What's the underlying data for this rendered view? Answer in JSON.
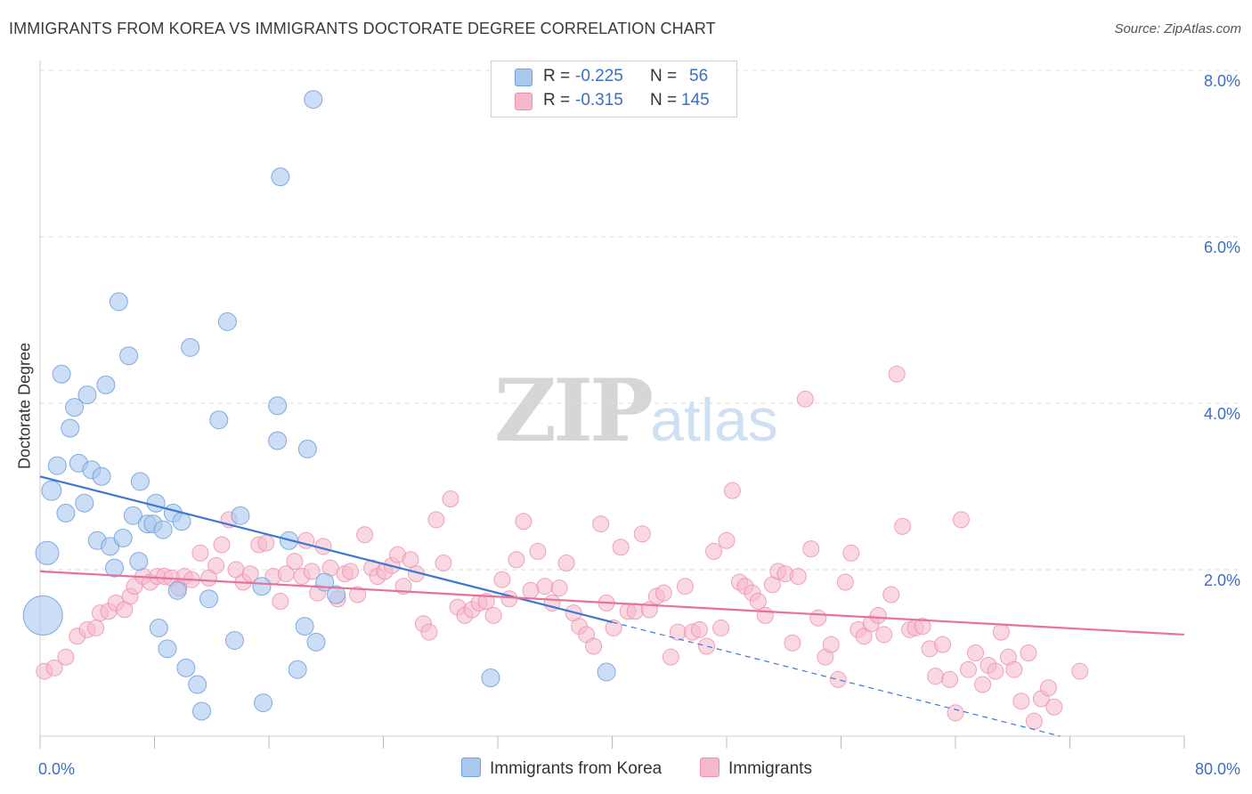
{
  "header": {
    "title": "IMMIGRANTS FROM KOREA VS IMMIGRANTS DOCTORATE DEGREE CORRELATION CHART",
    "source": "Source: ZipAtlas.com"
  },
  "watermark": {
    "zip": "ZIP",
    "atlas": "atlas"
  },
  "legend_top": {
    "rows": [
      {
        "r_label": "R =",
        "r_value": "-0.225",
        "n_label": "N =",
        "n_value": "56"
      },
      {
        "r_label": "R =",
        "r_value": "-0.315",
        "n_label": "N =",
        "n_value": "145"
      }
    ]
  },
  "legend_bottom": {
    "korea": "Immigrants from Korea",
    "immigrants": "Immigrants"
  },
  "colors": {
    "korea_fill": "#a9c8ef",
    "korea_stroke": "#6f9fdb",
    "korea_line": "#3a78d4",
    "imm_fill": "#f6b8cb",
    "imm_stroke": "#ec8fab",
    "imm_line": "#e8719a",
    "tick_text": "#3b6fc4",
    "grid": "#dddddd"
  },
  "chart_data": {
    "type": "scatter",
    "title": "IMMIGRANTS FROM KOREA VS IMMIGRANTS DOCTORATE DEGREE CORRELATION CHART",
    "xlabel": "",
    "ylabel": "Doctorate Degree",
    "xlim": [
      0,
      80
    ],
    "ylim": [
      0,
      8.0
    ],
    "x_tick_labels": [
      "0.0%",
      "80.0%"
    ],
    "y_ticks": [
      2.0,
      4.0,
      6.0,
      8.0
    ],
    "y_tick_labels": [
      "2.0%",
      "4.0%",
      "6.0%",
      "8.0%"
    ],
    "grid": true,
    "legend_position": "top-center",
    "series": [
      {
        "name": "Immigrants from Korea",
        "r": -0.225,
        "n": 56,
        "points": [
          [
            0.2,
            1.45,
            22
          ],
          [
            0.5,
            2.2,
            13
          ],
          [
            0.8,
            2.95,
            11
          ],
          [
            1.2,
            3.25,
            10
          ],
          [
            1.5,
            4.35,
            10
          ],
          [
            1.8,
            2.68,
            10
          ],
          [
            2.1,
            3.7,
            10
          ],
          [
            2.4,
            3.95,
            10
          ],
          [
            2.7,
            3.28,
            10
          ],
          [
            3.1,
            2.8,
            10
          ],
          [
            3.3,
            4.1,
            10
          ],
          [
            3.6,
            3.2,
            10
          ],
          [
            4.0,
            2.35,
            10
          ],
          [
            4.3,
            3.12,
            10
          ],
          [
            4.6,
            4.22,
            10
          ],
          [
            4.9,
            2.28,
            10
          ],
          [
            5.2,
            2.02,
            10
          ],
          [
            5.5,
            5.22,
            10
          ],
          [
            5.8,
            2.38,
            10
          ],
          [
            6.2,
            4.57,
            10
          ],
          [
            6.5,
            2.65,
            10
          ],
          [
            6.9,
            2.1,
            10
          ],
          [
            7.0,
            3.06,
            10
          ],
          [
            7.5,
            2.55,
            10
          ],
          [
            7.9,
            2.55,
            10
          ],
          [
            8.1,
            2.8,
            10
          ],
          [
            8.3,
            1.3,
            10
          ],
          [
            8.6,
            2.48,
            10
          ],
          [
            8.9,
            1.05,
            10
          ],
          [
            9.3,
            2.68,
            10
          ],
          [
            9.6,
            1.75,
            10
          ],
          [
            9.9,
            2.58,
            10
          ],
          [
            10.2,
            0.82,
            10
          ],
          [
            10.5,
            4.67,
            10
          ],
          [
            11.0,
            0.62,
            10
          ],
          [
            11.3,
            0.3,
            10
          ],
          [
            11.8,
            1.65,
            10
          ],
          [
            12.5,
            3.8,
            10
          ],
          [
            13.1,
            4.98,
            10
          ],
          [
            13.6,
            1.15,
            10
          ],
          [
            14.0,
            2.65,
            10
          ],
          [
            15.5,
            1.8,
            10
          ],
          [
            15.6,
            0.4,
            10
          ],
          [
            16.6,
            3.97,
            10
          ],
          [
            16.6,
            3.55,
            10
          ],
          [
            16.8,
            6.72,
            10
          ],
          [
            17.4,
            2.35,
            10
          ],
          [
            18.0,
            0.8,
            10
          ],
          [
            18.5,
            1.32,
            10
          ],
          [
            18.7,
            3.45,
            10
          ],
          [
            19.1,
            7.65,
            10
          ],
          [
            19.3,
            1.13,
            10
          ],
          [
            19.9,
            1.85,
            10
          ],
          [
            20.7,
            1.7,
            10
          ],
          [
            31.5,
            0.7,
            10
          ],
          [
            39.6,
            0.77,
            10
          ]
        ]
      },
      {
        "name": "Immigrants",
        "r": -0.315,
        "n": 145,
        "points": [
          [
            0.3,
            0.78
          ],
          [
            1.0,
            0.82
          ],
          [
            1.8,
            0.95
          ],
          [
            2.6,
            1.2
          ],
          [
            3.3,
            1.28
          ],
          [
            3.9,
            1.3
          ],
          [
            4.2,
            1.48
          ],
          [
            4.8,
            1.5
          ],
          [
            5.3,
            1.6
          ],
          [
            5.9,
            1.52
          ],
          [
            6.3,
            1.68
          ],
          [
            6.6,
            1.8
          ],
          [
            7.2,
            1.92
          ],
          [
            7.7,
            1.85
          ],
          [
            8.2,
            1.92
          ],
          [
            8.7,
            1.92
          ],
          [
            9.2,
            1.9
          ],
          [
            9.7,
            1.78
          ],
          [
            10.1,
            1.92
          ],
          [
            10.6,
            1.88
          ],
          [
            11.2,
            2.2
          ],
          [
            11.8,
            1.9
          ],
          [
            12.3,
            2.05
          ],
          [
            12.7,
            2.3
          ],
          [
            13.2,
            2.6
          ],
          [
            13.7,
            2.0
          ],
          [
            14.2,
            1.85
          ],
          [
            14.7,
            1.95
          ],
          [
            15.3,
            2.3
          ],
          [
            15.8,
            2.32
          ],
          [
            16.3,
            1.92
          ],
          [
            16.8,
            1.62
          ],
          [
            17.2,
            1.95
          ],
          [
            17.8,
            2.1
          ],
          [
            18.3,
            1.92
          ],
          [
            18.6,
            2.35
          ],
          [
            19.0,
            1.98
          ],
          [
            19.4,
            1.72
          ],
          [
            19.8,
            2.28
          ],
          [
            20.3,
            2.02
          ],
          [
            20.8,
            1.65
          ],
          [
            21.3,
            1.95
          ],
          [
            21.7,
            1.98
          ],
          [
            22.2,
            1.7
          ],
          [
            22.7,
            2.42
          ],
          [
            23.2,
            2.02
          ],
          [
            23.6,
            1.92
          ],
          [
            24.1,
            1.98
          ],
          [
            24.6,
            2.05
          ],
          [
            25.0,
            2.18
          ],
          [
            25.4,
            1.8
          ],
          [
            25.9,
            2.12
          ],
          [
            26.3,
            1.95
          ],
          [
            26.8,
            1.35
          ],
          [
            27.2,
            1.25
          ],
          [
            27.7,
            2.6
          ],
          [
            28.2,
            2.08
          ],
          [
            28.7,
            2.85
          ],
          [
            29.2,
            1.55
          ],
          [
            29.7,
            1.45
          ],
          [
            30.2,
            1.52
          ],
          [
            30.7,
            1.6
          ],
          [
            31.2,
            1.62
          ],
          [
            31.7,
            1.45
          ],
          [
            32.3,
            1.88
          ],
          [
            32.8,
            1.65
          ],
          [
            33.3,
            2.12
          ],
          [
            33.8,
            2.58
          ],
          [
            34.3,
            1.75
          ],
          [
            34.8,
            2.22
          ],
          [
            35.3,
            1.8
          ],
          [
            35.8,
            1.6
          ],
          [
            36.3,
            1.78
          ],
          [
            36.8,
            2.08
          ],
          [
            37.3,
            1.48
          ],
          [
            37.7,
            1.32
          ],
          [
            38.2,
            1.22
          ],
          [
            38.7,
            1.08
          ],
          [
            39.2,
            2.55
          ],
          [
            39.6,
            1.6
          ],
          [
            40.1,
            1.3
          ],
          [
            40.6,
            2.27
          ],
          [
            41.1,
            1.5
          ],
          [
            41.6,
            1.5
          ],
          [
            42.1,
            2.43
          ],
          [
            42.6,
            1.52
          ],
          [
            43.1,
            1.68
          ],
          [
            43.6,
            1.72
          ],
          [
            44.1,
            0.95
          ],
          [
            44.6,
            1.25
          ],
          [
            45.1,
            1.8
          ],
          [
            45.6,
            1.25
          ],
          [
            46.1,
            1.28
          ],
          [
            46.6,
            1.08
          ],
          [
            47.1,
            2.22
          ],
          [
            47.6,
            1.3
          ],
          [
            48.0,
            2.35
          ],
          [
            48.4,
            2.95
          ],
          [
            48.9,
            1.85
          ],
          [
            49.3,
            1.8
          ],
          [
            49.8,
            1.72
          ],
          [
            50.2,
            1.62
          ],
          [
            50.7,
            1.45
          ],
          [
            51.2,
            1.82
          ],
          [
            51.6,
            1.98
          ],
          [
            52.1,
            1.95
          ],
          [
            52.6,
            1.12
          ],
          [
            53.0,
            1.92
          ],
          [
            53.5,
            4.05
          ],
          [
            53.9,
            2.25
          ],
          [
            54.4,
            1.42
          ],
          [
            54.9,
            0.95
          ],
          [
            55.3,
            1.1
          ],
          [
            55.8,
            0.68
          ],
          [
            56.3,
            1.85
          ],
          [
            56.7,
            2.2
          ],
          [
            57.2,
            1.28
          ],
          [
            57.6,
            1.2
          ],
          [
            58.1,
            1.35
          ],
          [
            58.6,
            1.45
          ],
          [
            59.0,
            1.22
          ],
          [
            59.5,
            1.7
          ],
          [
            59.9,
            4.35
          ],
          [
            60.3,
            2.52
          ],
          [
            60.8,
            1.28
          ],
          [
            61.2,
            1.3
          ],
          [
            61.7,
            1.32
          ],
          [
            62.2,
            1.05
          ],
          [
            62.6,
            0.72
          ],
          [
            63.1,
            1.1
          ],
          [
            63.6,
            0.68
          ],
          [
            64.0,
            0.28
          ],
          [
            64.4,
            2.6
          ],
          [
            64.9,
            0.8
          ],
          [
            65.4,
            1.0
          ],
          [
            65.9,
            0.62
          ],
          [
            66.3,
            0.85
          ],
          [
            66.8,
            0.78
          ],
          [
            67.2,
            1.25
          ],
          [
            67.7,
            0.95
          ],
          [
            68.1,
            0.8
          ],
          [
            68.6,
            0.42
          ],
          [
            69.1,
            1.0
          ],
          [
            69.5,
            0.18
          ],
          [
            70.0,
            0.45
          ],
          [
            70.5,
            0.58
          ],
          [
            70.9,
            0.35
          ],
          [
            72.7,
            0.78
          ]
        ]
      }
    ],
    "trend_lines": [
      {
        "series": "Immigrants from Korea",
        "x": [
          0,
          40
        ],
        "y": [
          3.12,
          1.37
        ],
        "dashed_extension_to": [
          90,
          -0.85
        ]
      },
      {
        "series": "Immigrants",
        "x": [
          0,
          80
        ],
        "y": [
          1.98,
          1.22
        ]
      }
    ]
  }
}
